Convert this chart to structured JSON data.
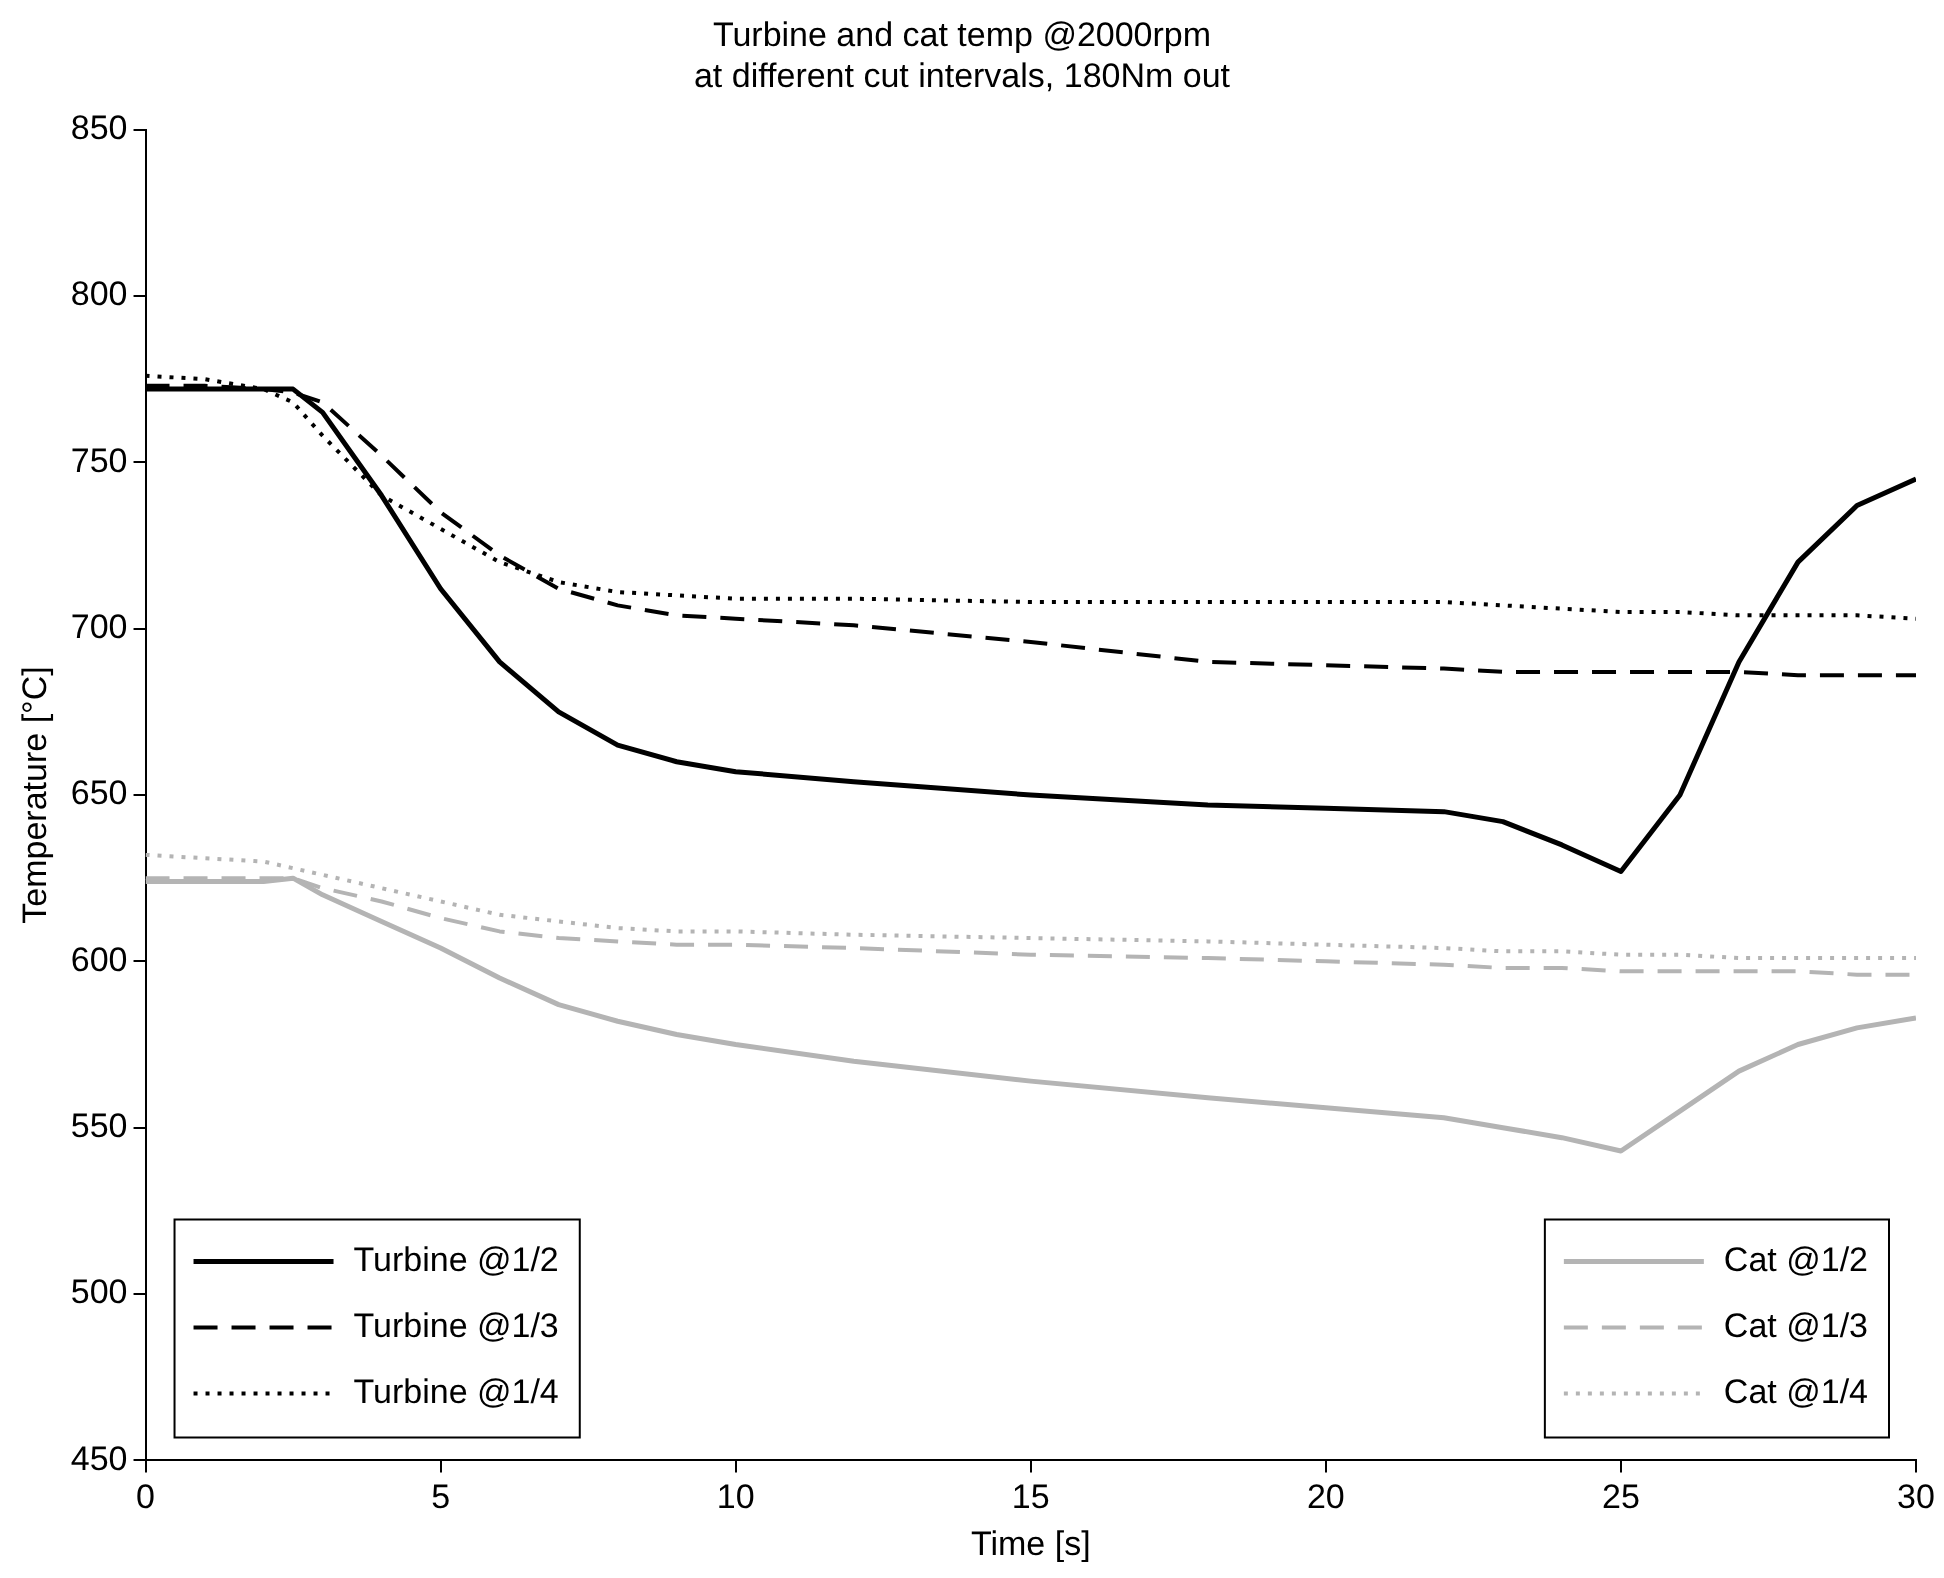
{
  "chart_data": {
    "type": "line",
    "title": [
      "Turbine and cat temp @2000rpm",
      "at different cut intervals, 180Nm out"
    ],
    "xlabel": "Time [s]",
    "ylabel": "Temperature [°C]",
    "x": [
      0,
      1,
      2,
      2.5,
      3,
      4,
      5,
      6,
      7,
      8,
      9,
      10,
      12,
      15,
      18,
      20,
      22,
      23,
      24,
      25,
      26,
      27,
      28,
      29,
      30
    ],
    "xlim": [
      0,
      30
    ],
    "xticks": [
      0,
      5,
      10,
      15,
      20,
      25,
      30
    ],
    "ylim": [
      450,
      850
    ],
    "yticks": [
      450,
      500,
      550,
      600,
      650,
      700,
      750,
      800,
      850
    ],
    "grid": false,
    "legend": "bottom",
    "marker": "none",
    "series": [
      {
        "name": "Turbine @1/2",
        "color": "#000000",
        "line_style": "solid",
        "values": [
          772,
          772,
          772,
          772,
          765,
          740,
          712,
          690,
          675,
          665,
          660,
          657,
          654,
          650,
          647,
          646,
          645,
          642,
          635,
          627,
          650,
          690,
          720,
          737,
          745
        ]
      },
      {
        "name": "Turbine @1/3",
        "color": "#000000",
        "line_style": "dashed",
        "values": [
          773,
          773,
          772,
          771,
          768,
          752,
          735,
          722,
          712,
          707,
          704,
          703,
          701,
          696,
          690,
          689,
          688,
          687,
          687,
          687,
          687,
          687,
          686,
          686,
          686
        ]
      },
      {
        "name": "Turbine @1/4",
        "color": "#000000",
        "line_style": "dotted",
        "values": [
          776,
          775,
          772,
          768,
          758,
          740,
          730,
          720,
          714,
          711,
          710,
          709,
          709,
          708,
          708,
          708,
          708,
          707,
          706,
          705,
          705,
          704,
          704,
          704,
          703
        ]
      },
      {
        "name": "Cat @1/2",
        "color": "#b4b4b4",
        "line_style": "solid",
        "values": [
          624,
          624,
          624,
          625,
          620,
          612,
          604,
          595,
          587,
          582,
          578,
          575,
          570,
          564,
          559,
          556,
          553,
          550,
          547,
          543,
          555,
          567,
          575,
          580,
          583
        ]
      },
      {
        "name": "Cat @1/3",
        "color": "#b4b4b4",
        "line_style": "dashed",
        "values": [
          625,
          625,
          625,
          625,
          622,
          618,
          613,
          609,
          607,
          606,
          605,
          605,
          604,
          602,
          601,
          600,
          599,
          598,
          598,
          597,
          597,
          597,
          597,
          596,
          596
        ]
      },
      {
        "name": "Cat @1/4",
        "color": "#b4b4b4",
        "line_style": "dotted",
        "values": [
          632,
          631,
          630,
          628,
          626,
          622,
          618,
          614,
          612,
          610,
          609,
          609,
          608,
          607,
          606,
          605,
          604,
          603,
          603,
          602,
          602,
          601,
          601,
          601,
          601
        ]
      }
    ]
  }
}
